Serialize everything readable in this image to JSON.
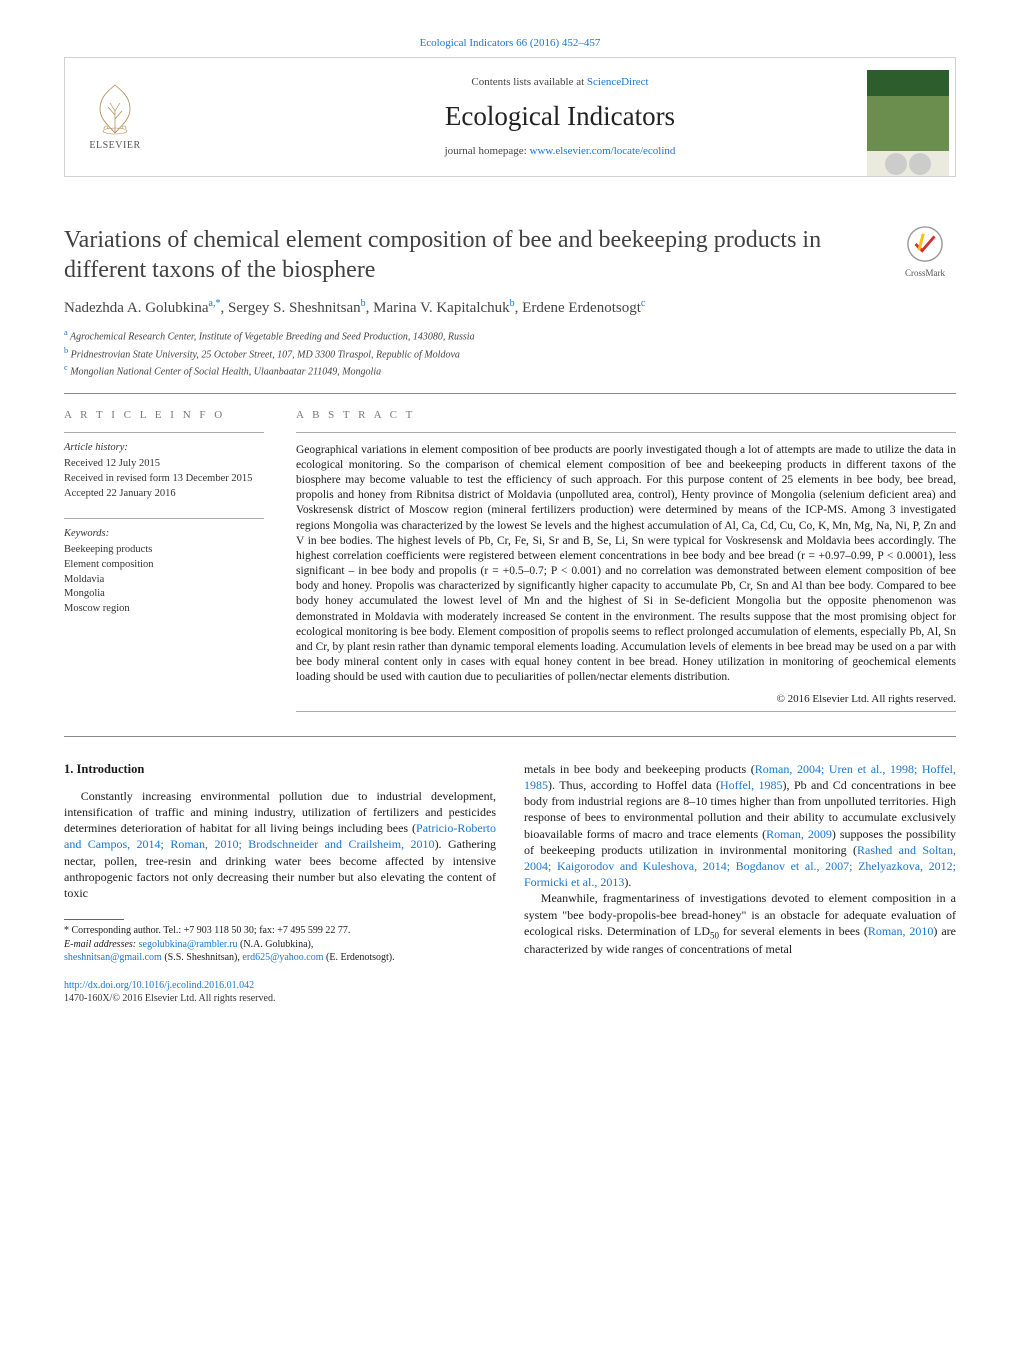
{
  "header": {
    "citation": "Ecological Indicators 66 (2016) 452–457",
    "contents_prefix": "Contents lists available at ",
    "contents_link": "ScienceDirect",
    "journal": "Ecological Indicators",
    "homepage_prefix": "journal homepage: ",
    "homepage_url": "www.elsevier.com/locate/ecolind",
    "elsevier": "ELSEVIER"
  },
  "title": "Variations of chemical element composition of bee and beekeeping products in different taxons of the biosphere",
  "crossmark": "CrossMark",
  "authors_html": "Nadezhda A. Golubkina<sup>a,*</sup>, Sergey S. Sheshnitsan<sup>b</sup>, Marina V. Kapitalchuk<sup>b</sup>, Erdene Erdenotsogt<sup>c</sup>",
  "affiliations": [
    {
      "sup": "a",
      "text": "Agrochemical Research Center, Institute of Vegetable Breeding and Seed Production, 143080, Russia"
    },
    {
      "sup": "b",
      "text": "Pridnestrovian State University, 25 October Street, 107, MD 3300 Tiraspol, Republic of Moldova"
    },
    {
      "sup": "c",
      "text": "Mongolian National Center of Social Health, Ulaanbaatar 211049, Mongolia"
    }
  ],
  "article_info": {
    "head": "A R T I C L E   I N F O",
    "history_label": "Article history:",
    "history": [
      "Received 12 July 2015",
      "Received in revised form 13 December 2015",
      "Accepted 22 January 2016"
    ],
    "keywords_label": "Keywords:",
    "keywords": [
      "Beekeeping products",
      "Element composition",
      "Moldavia",
      "Mongolia",
      "Moscow region"
    ]
  },
  "abstract": {
    "head": "A B S T R A C T",
    "text": "Geographical variations in element composition of bee products are poorly investigated though a lot of attempts are made to utilize the data in ecological monitoring. So the comparison of chemical element composition of bee and beekeeping products in different taxons of the biosphere may become valuable to test the efficiency of such approach. For this purpose content of 25 elements in bee body, bee bread, propolis and honey from Ribnitsa district of Moldavia (unpolluted area, control), Henty province of Mongolia (selenium deficient area) and Voskresensk district of Moscow region (mineral fertilizers production) were determined by means of the ICP-MS. Among 3 investigated regions Mongolia was characterized by the lowest Se levels and the highest accumulation of Al, Ca, Cd, Cu, Co, K, Mn, Mg, Na, Ni, P, Zn and V in bee bodies. The highest levels of Pb, Cr, Fe, Si, Sr and B, Se, Li, Sn were typical for Voskresensk and Moldavia bees accordingly. The highest correlation coefficients were registered between element concentrations in bee body and bee bread (r = +0.97–0.99, P < 0.0001), less significant – in bee body and propolis (r = +0.5–0.7; P < 0.001) and no correlation was demonstrated between element composition of bee body and honey. Propolis was characterized by significantly higher capacity to accumulate Pb, Cr, Sn and Al than bee body. Compared to bee body honey accumulated the lowest level of Mn and the highest of Si in Se-deficient Mongolia but the opposite phenomenon was demonstrated in Moldavia with moderately increased Se content in the environment. The results suppose that the most promising object for ecological monitoring is bee body. Element composition of propolis seems to reflect prolonged accumulation of elements, especially Pb, Al, Sn and Cr, by plant resin rather than dynamic temporal elements loading. Accumulation levels of elements in bee bread may be used on a par with bee body mineral content only in cases with equal honey content in bee bread. Honey utilization in monitoring of geochemical elements loading should be used with caution due to peculiarities of pollen/nectar elements distribution.",
    "copyright": "© 2016 Elsevier Ltd. All rights reserved."
  },
  "body": {
    "section_num": "1.",
    "section_title": "Introduction",
    "p1_a": "Constantly increasing environmental pollution due to industrial development, intensification of traffic and mining industry, utilization of fertilizers and pesticides determines deterioration of habitat for all living beings including bees (",
    "p1_ref1": "Patricio-Roberto and Campos, 2014; Roman, 2010; Brodschneider and Crailsheim, 2010",
    "p1_b": "). Gathering nectar, pollen, tree-resin and drinking water bees become affected by intensive anthropogenic factors not only decreasing their number but also elevating the content of toxic",
    "p2_a": "metals in bee body and beekeeping products (",
    "p2_ref1": "Roman, 2004; Uren et al., 1998; Hoffel, 1985",
    "p2_b": "). Thus, according to Hoffel data (",
    "p2_ref2": "Hoffel, 1985",
    "p2_c": "), Pb and Cd concentrations in bee body from industrial regions are 8–10 times higher than from unpolluted territories. High response of bees to environmental pollution and their ability to accumulate exclusively bioavailable forms of macro and trace elements (",
    "p2_ref3": "Roman, 2009",
    "p2_d": ") supposes the possibility of beekeeping products utilization in invironmental monitoring (",
    "p2_ref4": "Rashed and Soltan, 2004; Kaigorodov and Kuleshova, 2014; Bogdanov et al., 2007; Zhelyazkova, 2012; Formicki et al., 2013",
    "p2_e": ").",
    "p3_a": "Meanwhile, fragmentariness of investigations devoted to element composition in a system \"bee body-propolis-bee bread-honey\" is an obstacle for adequate evaluation of ecological risks. Determination of LD",
    "p3_sub": "50",
    "p3_b": " for several elements in bees (",
    "p3_ref1": "Roman, 2010",
    "p3_c": ") are characterized by wide ranges of concentrations of metal"
  },
  "footnote": {
    "corr": "* Corresponding author. Tel.: +7 903 118 50 30; fax: +7 495 599 22 77.",
    "email_label": "E-mail addresses: ",
    "e1": "segolubkina@rambler.ru",
    "e1n": " (N.A. Golubkina),",
    "e2": "sheshnitsan@gmail.com",
    "e2n": " (S.S. Sheshnitsan), ",
    "e3": "erd625@yahoo.com",
    "e3n": " (E. Erdenotsogt)."
  },
  "doi": {
    "url": "http://dx.doi.org/10.1016/j.ecolind.2016.01.042",
    "issn": "1470-160X/© 2016 Elsevier Ltd. All rights reserved."
  },
  "colors": {
    "link": "#1976d2",
    "text": "#1a1a1a",
    "rule": "#888888"
  }
}
